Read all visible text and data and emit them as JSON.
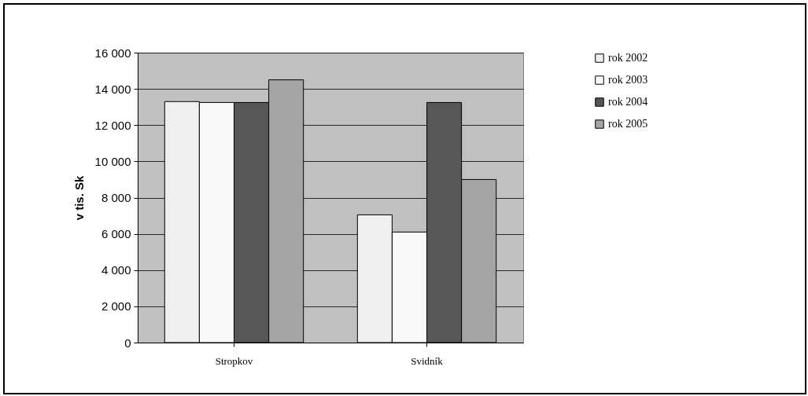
{
  "chart_data": {
    "type": "bar",
    "ylabel": "v tis. Sk",
    "categories": [
      "Stropkov",
      "Svidník"
    ],
    "series": [
      {
        "name": "rok 2002",
        "color": "#efefef",
        "values": [
          13300,
          7050
        ]
      },
      {
        "name": "rok 2003",
        "color": "#f9f9f9",
        "values": [
          13250,
          6100
        ]
      },
      {
        "name": "rok 2004",
        "color": "#575757",
        "values": [
          13250,
          13250
        ]
      },
      {
        "name": "rok 2005",
        "color": "#a4a4a4",
        "values": [
          14500,
          9000
        ]
      }
    ],
    "ylim": [
      0,
      16000
    ],
    "yticks": [
      {
        "value": 0,
        "label": "0"
      },
      {
        "value": 2000,
        "label": "2 000"
      },
      {
        "value": 4000,
        "label": "4 000"
      },
      {
        "value": 6000,
        "label": "6 000"
      },
      {
        "value": 8000,
        "label": "8 000"
      },
      {
        "value": 10000,
        "label": "10 000"
      },
      {
        "value": 12000,
        "label": "12 000"
      },
      {
        "value": 14000,
        "label": "14 000"
      },
      {
        "value": 16000,
        "label": "16 000"
      }
    ],
    "grid": "y",
    "legend": "right"
  }
}
